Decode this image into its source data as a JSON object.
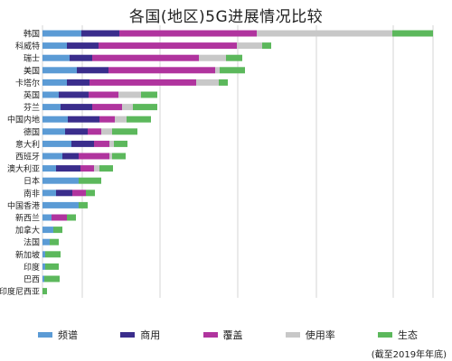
{
  "chart_data": {
    "type": "bar",
    "stacked": true,
    "orientation": "horizontal",
    "title": "各国(地区)5G进展情况比较",
    "note": "(截至2019年年底)",
    "grid": true,
    "colors": {
      "频谱": "#5b9bd5",
      "商用": "#3a2d8c",
      "覆盖": "#b0349e",
      "使用率": "#c8c8c8",
      "生态": "#5cb85c"
    },
    "categories": [
      "韩国",
      "科威特",
      "瑞士",
      "美国",
      "卡塔尔",
      "英国",
      "芬兰",
      "中国内地",
      "德国",
      "意大利",
      "西班牙",
      "澳大利亚",
      "日本",
      "南非",
      "中国香港",
      "新西兰",
      "加拿大",
      "法国",
      "新加坡",
      "印度",
      "巴西",
      "印度尼西亚"
    ],
    "series": [
      {
        "name": "频谱",
        "values": [
          43,
          27,
          30,
          38,
          27,
          18,
          20,
          28,
          25,
          32,
          22,
          15,
          40,
          15,
          40,
          10,
          12,
          8,
          3,
          3,
          2,
          0
        ]
      },
      {
        "name": "商用",
        "values": [
          42,
          35,
          25,
          35,
          25,
          33,
          35,
          35,
          25,
          25,
          18,
          27,
          0,
          18,
          0,
          0,
          0,
          0,
          0,
          0,
          0,
          0
        ]
      },
      {
        "name": "覆盖",
        "values": [
          152,
          153,
          118,
          118,
          118,
          33,
          33,
          17,
          15,
          17,
          34,
          15,
          0,
          15,
          0,
          17,
          0,
          0,
          0,
          0,
          0,
          0
        ]
      },
      {
        "name": "使用率",
        "values": [
          150,
          28,
          30,
          5,
          25,
          25,
          12,
          13,
          12,
          5,
          3,
          6,
          0,
          0,
          0,
          0,
          0,
          0,
          0,
          0,
          0,
          0
        ]
      },
      {
        "name": "生态",
        "values": [
          45,
          10,
          18,
          28,
          10,
          18,
          27,
          27,
          28,
          15,
          15,
          15,
          25,
          10,
          10,
          10,
          10,
          10,
          17,
          15,
          17,
          5
        ]
      }
    ],
    "xlim": [
      0,
      432
    ]
  }
}
